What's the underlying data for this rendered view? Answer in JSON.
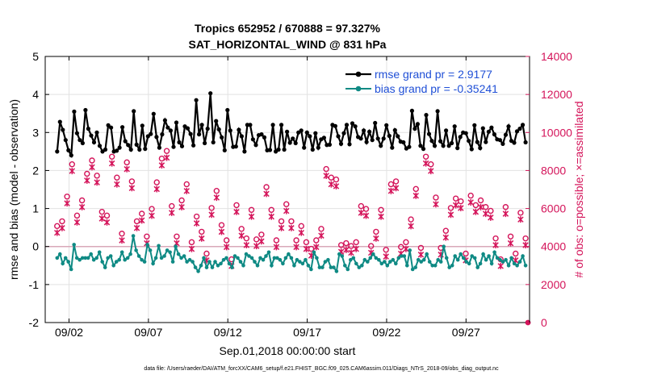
{
  "chart_data": {
    "type": "line",
    "title_line1": "Tropics 652952 / 670888 = 97.327%",
    "title_line2": "SAT_HORIZONTAL_WIND @ 831 hPa",
    "xlabel": "Sep.01,2018 00:00:00 start",
    "ylabel_left": "rmse and bias (model - observation)",
    "ylabel_right": "# of obs: o=possible; ×=assimilated",
    "footer": "data file: /Users/raeder/DAI/ATM_forcXX/CAM6_setup/f.e21.FHIST_BGC.f09_025.CAM6assim.011/Diags_NTrS_2018-09/obs_diag_output.nc",
    "xlim": [
      0.5,
      31.0
    ],
    "ylim_left": [
      -2,
      5
    ],
    "ylim_right": [
      0,
      14000
    ],
    "xticks": [
      2,
      7,
      12,
      17,
      22,
      27
    ],
    "xtick_labels": [
      "09/02",
      "09/07",
      "09/12",
      "09/17",
      "09/22",
      "09/27"
    ],
    "yticks_left": [
      -2,
      -1,
      0,
      1,
      2,
      3,
      4,
      5
    ],
    "yticks_right": [
      0,
      2000,
      4000,
      6000,
      8000,
      10000,
      12000,
      14000
    ],
    "colors": {
      "rmse": "#000000",
      "bias": "#0f8a84",
      "obs": "#d4145a",
      "zero_line": "#d8a8b8",
      "grid": "#e2e2e2"
    },
    "legend": [
      "rmse grand pr = 2.9177",
      "bias grand pr = -0.35241"
    ],
    "rmse": [
      2.5,
      3.28,
      3.07,
      2.8,
      2.53,
      2.4,
      3.55,
      2.98,
      2.8,
      2.72,
      3.59,
      3.1,
      2.92,
      2.74,
      3.0,
      2.65,
      2.5,
      2.55,
      3.19,
      3.13,
      2.5,
      2.52,
      2.6,
      3.14,
      2.77,
      2.67,
      2.55,
      3.56,
      2.68,
      2.55,
      3.18,
      2.57,
      2.9,
      2.96,
      3.49,
      2.88,
      2.6,
      2.95,
      3.32,
      3.13,
      3.05,
      2.62,
      3.26,
      2.74,
      2.64,
      3.16,
      3.11,
      2.96,
      2.66,
      3.85,
      2.95,
      3.2,
      2.72,
      3.1,
      4.03,
      2.74,
      3.3,
      3.08,
      2.87,
      2.53,
      3.59,
      3.05,
      2.62,
      2.63,
      3.07,
      2.9,
      2.5,
      3.2,
      3.2,
      2.82,
      2.67,
      2.93,
      2.95,
      2.87,
      2.53,
      2.54,
      3.2,
      2.5,
      2.55,
      3.2,
      2.55,
      3.02,
      2.73,
      2.84,
      2.72,
      3.0,
      3.05,
      2.6,
      3.0,
      2.9,
      2.55,
      2.98,
      2.6,
      2.82,
      2.86,
      2.67,
      2.68,
      3.2,
      3.17,
      2.9,
      2.7,
      2.98,
      3.2,
      2.69,
      3.24,
      3.16,
      2.88,
      2.84,
      3.05,
      2.75,
      3.02,
      2.8,
      3.25,
      2.84,
      2.65,
      2.84,
      3.19,
      2.91,
      2.6,
      3.06,
      2.9,
      2.76,
      2.74,
      2.58,
      2.62,
      3.57,
      3.1,
      3.22,
      2.65,
      2.57,
      3.46,
      2.96,
      2.78,
      2.65,
      3.56,
      2.77,
      2.65,
      3.05,
      2.65,
      2.72,
      3.16,
      2.59,
      2.88,
      3.0,
      2.98,
      2.78,
      2.56,
      3.19,
      2.75,
      2.59,
      3.11,
      2.75,
      3.02,
      3.13,
      2.95,
      2.82,
      2.8,
      2.7,
      2.94,
      3.16,
      2.78,
      2.73,
      3.03,
      3.1,
      3.2,
      2.74
    ],
    "bias": [
      -0.3,
      -0.2,
      -0.45,
      -0.3,
      -0.4,
      -0.6,
      0.05,
      -0.3,
      -0.35,
      -0.3,
      -0.3,
      -0.3,
      -0.2,
      -0.35,
      -0.3,
      -0.15,
      -0.4,
      -0.55,
      -0.3,
      -0.25,
      -0.5,
      -0.4,
      -0.35,
      -0.15,
      -0.35,
      -0.3,
      -0.2,
      0.28,
      -0.1,
      -0.25,
      -0.35,
      -0.4,
      0.05,
      -0.1,
      -0.45,
      -0.3,
      0.02,
      -0.3,
      -0.25,
      -0.1,
      -0.15,
      -0.4,
      0.0,
      -0.2,
      -0.3,
      -0.25,
      -0.4,
      -0.35,
      -0.4,
      -0.55,
      -0.65,
      -0.5,
      -0.3,
      -0.55,
      -0.4,
      -0.55,
      -0.4,
      -0.5,
      -0.45,
      -0.35,
      -0.3,
      -0.45,
      -0.55,
      -0.25,
      -0.3,
      -0.4,
      -0.5,
      -0.2,
      -0.25,
      -0.3,
      -0.4,
      -0.5,
      -0.3,
      -0.35,
      -0.25,
      -0.15,
      -0.5,
      -0.3,
      -0.3,
      -0.35,
      -0.45,
      -0.3,
      -0.2,
      -0.3,
      -0.5,
      -0.35,
      -0.4,
      -0.45,
      -0.35,
      -0.5,
      -0.6,
      -0.15,
      -0.3,
      -0.55,
      -0.55,
      -0.4,
      -0.35,
      -0.55,
      -0.55,
      -0.65,
      -0.2,
      -0.25,
      -0.5,
      -0.6,
      -0.35,
      -0.3,
      -0.45,
      -0.55,
      -0.5,
      -0.35,
      -0.4,
      -0.3,
      -0.2,
      -0.3,
      -0.35,
      -0.45,
      -0.4,
      -0.5,
      -0.4,
      -0.35,
      -0.45,
      -0.3,
      -0.25,
      -0.25,
      -0.5,
      -0.1,
      -0.6,
      -0.55,
      -0.35,
      -0.4,
      -0.35,
      -0.2,
      -0.4,
      -0.5,
      -0.5,
      -0.35,
      -0.4,
      0.0,
      -0.3,
      -0.55,
      -0.5,
      -0.25,
      -0.35,
      -0.2,
      -0.3,
      -0.4,
      -0.45,
      -0.25,
      -0.3,
      -0.55,
      -0.45,
      -0.2,
      -0.35,
      -0.25,
      -0.45,
      -0.15,
      -0.3,
      -0.35,
      -0.4,
      -0.35,
      -0.5,
      -0.3,
      -0.45,
      -0.5,
      -0.4,
      -0.25,
      -0.5
    ],
    "obs_possible": [
      4950,
      5200,
      6500,
      8200,
      5500,
      6300,
      7700,
      8400,
      7600,
      5700,
      5500,
      8600,
      7500,
      4550,
      8300,
      7300,
      5200,
      5600,
      4400,
      5850,
      7250,
      8500,
      8900,
      6000,
      4400,
      6300,
      7150,
      4100,
      5450,
      4650,
      3500,
      5900,
      6800,
      5000,
      4200,
      3200,
      6050,
      4800,
      4300,
      5800,
      4250,
      4500,
      7000,
      5800,
      4200,
      5200,
      6100,
      5200,
      4200,
      4950,
      4100,
      3750,
      4200,
      4800,
      7950,
      7500,
      7400,
      3950,
      4050,
      3900,
      4100,
      6000,
      5850,
      3900,
      4650,
      5800,
      3700,
      7150,
      7300,
      3850,
      4100,
      5300,
      6900,
      3800,
      8600,
      8200,
      6450,
      3800,
      4700,
      5900,
      6400,
      6250,
      3500,
      6550,
      6050,
      6300,
      5950,
      5750,
      4300,
      3200,
      5950,
      4400,
      3500,
      5650,
      4300
    ],
    "obs_assimilated": [
      4850,
      5100,
      6400,
      8100,
      5400,
      6200,
      7600,
      8300,
      7500,
      5600,
      5400,
      8500,
      7400,
      4450,
      8200,
      7200,
      5100,
      5500,
      4300,
      5750,
      7150,
      8400,
      8800,
      5900,
      4300,
      6200,
      7050,
      4000,
      5350,
      4550,
      3400,
      5800,
      6700,
      4900,
      4100,
      3100,
      5950,
      4700,
      4200,
      5700,
      4150,
      4400,
      6900,
      5700,
      4100,
      5100,
      6000,
      5100,
      4100,
      4850,
      4000,
      3650,
      4100,
      4700,
      7850,
      7400,
      7300,
      3850,
      3950,
      3800,
      4000,
      5900,
      5750,
      3800,
      4550,
      5700,
      3600,
      7050,
      7200,
      3750,
      4000,
      5200,
      6800,
      3700,
      8500,
      8100,
      6350,
      3700,
      4600,
      5800,
      6300,
      6150,
      3400,
      6450,
      5950,
      6200,
      5850,
      5650,
      4200,
      3100,
      5850,
      4300,
      3400,
      5550,
      4200
    ]
  }
}
